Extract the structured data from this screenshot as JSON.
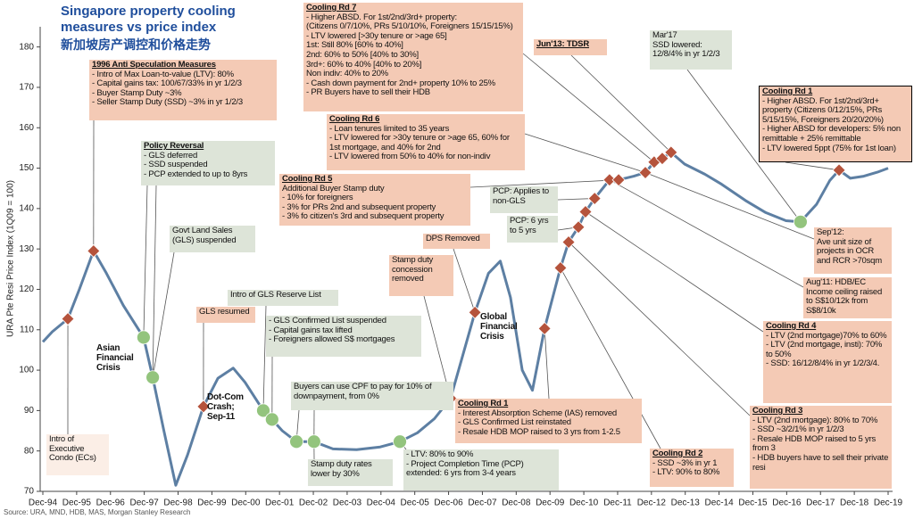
{
  "chart_data": {
    "type": "line",
    "title": "Singapore property cooling measures vs price index",
    "subtitle": "新加坡房产调控和价格走势",
    "y_label": "URA Pte Resi Price Index (1Q09 = 100)",
    "source": "Source: URA, MND, HDB, MAS, Morgan Stanley Research",
    "color": "#5d7fa3",
    "x": [
      1994.92,
      1995.2,
      1995.66,
      1996.0,
      1996.42,
      1996.8,
      1997.3,
      1997.9,
      1998.17,
      1998.5,
      1998.85,
      1999.2,
      1999.67,
      2000.1,
      2000.55,
      2000.9,
      2001.44,
      2001.7,
      2002.0,
      2002.42,
      2002.94,
      2003.5,
      2004.2,
      2004.9,
      2005.48,
      2006.0,
      2006.5,
      2006.98,
      2007.7,
      2008.1,
      2008.45,
      2008.75,
      2009.1,
      2009.4,
      2009.76,
      2010.23,
      2010.47,
      2010.76,
      2010.97,
      2011.24,
      2011.68,
      2011.95,
      2012.4,
      2012.74,
      2013.0,
      2013.24,
      2013.5,
      2013.9,
      2014.5,
      2015.0,
      2015.7,
      2016.3,
      2016.9,
      2017.33,
      2017.8,
      2018.2,
      2018.47,
      2018.8,
      2019.2,
      2019.6,
      2019.92
    ],
    "values": [
      107,
      109.5,
      112.7,
      120,
      129.5,
      124,
      116,
      108.1,
      98.2,
      85,
      71.5,
      79,
      91,
      98,
      100.5,
      97,
      90,
      87.8,
      85,
      82.3,
      82.3,
      80.5,
      80.3,
      81,
      82.3,
      84.5,
      88,
      93,
      114.3,
      124,
      127,
      118,
      100,
      95,
      110.3,
      125.3,
      131.7,
      135.4,
      139.2,
      142.5,
      147.1,
      147.1,
      148,
      148.9,
      151.5,
      152.4,
      153.9,
      151,
      148.5,
      146,
      142,
      139,
      137,
      136.7,
      141,
      147,
      149.5,
      147.5,
      148,
      149,
      150
    ],
    "markers": [
      {
        "shape": "diamond",
        "color": "#b5533c",
        "x": [
          1995.66,
          1996.42,
          1999.67,
          2006.98,
          2007.7,
          2009.76,
          2010.23,
          2010.47,
          2010.76,
          2010.97,
          2011.24,
          2011.68,
          2011.95,
          2012.74,
          2013.0,
          2013.24,
          2013.5,
          2018.47
        ],
        "values": [
          112.7,
          129.5,
          91,
          93,
          114.3,
          110.3,
          125.3,
          131.7,
          135.4,
          139.2,
          142.5,
          147.1,
          147.1,
          148.9,
          151.5,
          152.4,
          153.9,
          149.5
        ]
      },
      {
        "shape": "circle",
        "color": "#93c47d",
        "x": [
          1997.9,
          1998.17,
          2001.44,
          2001.7,
          2002.42,
          2002.94,
          2005.48,
          2017.33
        ],
        "values": [
          108.1,
          98.2,
          90,
          87.8,
          82.3,
          82.3,
          82.3,
          136.7
        ]
      }
    ],
    "xlim": [
      1994.92,
      2019.92
    ],
    "xticks": [
      {
        "value": 1994.92,
        "label": "Dec-94"
      },
      {
        "value": 1995.92,
        "label": "Dec-95"
      },
      {
        "value": 1996.92,
        "label": "Dec-96"
      },
      {
        "value": 1997.92,
        "label": "Dec-97"
      },
      {
        "value": 1998.92,
        "label": "Dec-98"
      },
      {
        "value": 1999.92,
        "label": "Dec-99"
      },
      {
        "value": 2000.92,
        "label": "Dec-00"
      },
      {
        "value": 2001.92,
        "label": "Dec-01"
      },
      {
        "value": 2002.92,
        "label": "Dec-02"
      },
      {
        "value": 2003.92,
        "label": "Dec-03"
      },
      {
        "value": 2004.92,
        "label": "Dec-04"
      },
      {
        "value": 2005.92,
        "label": "Dec-05"
      },
      {
        "value": 2006.92,
        "label": "Dec-06"
      },
      {
        "value": 2007.92,
        "label": "Dec-07"
      },
      {
        "value": 2008.92,
        "label": "Dec-08"
      },
      {
        "value": 2009.92,
        "label": "Dec-09"
      },
      {
        "value": 2010.92,
        "label": "Dec-10"
      },
      {
        "value": 2011.92,
        "label": "Dec-11"
      },
      {
        "value": 2012.92,
        "label": "Dec-12"
      },
      {
        "value": 2013.92,
        "label": "Dec-13"
      },
      {
        "value": 2014.92,
        "label": "Dec-14"
      },
      {
        "value": 2015.92,
        "label": "Dec-15"
      },
      {
        "value": 2016.92,
        "label": "Dec-16"
      },
      {
        "value": 2017.92,
        "label": "Dec-17"
      },
      {
        "value": 2018.92,
        "label": "Dec-18"
      },
      {
        "value": 2019.92,
        "label": "Dec-19"
      }
    ],
    "ylim": [
      70,
      185
    ],
    "yticks": [
      70,
      80,
      90,
      100,
      110,
      120,
      130,
      140,
      150,
      160,
      170,
      180
    ],
    "grid": false,
    "annotations": [
      {
        "lines": [
          "Intro of Executive Condo (ECs)"
        ],
        "color": "#fbeee6"
      },
      {
        "title": "1996 Anti Speculation Measures",
        "lines": [
          "- Intro of Max Loan-to-value (LTV): 80%",
          "- Capital gains tax: 100/67/33% in yr 1/2/3",
          "- Buyer Stamp Duty ~3%",
          "- Seller Stamp Duty (SSD) ~3% in yr 1/2/3"
        ],
        "color": "#f4cab5"
      },
      {
        "title": "Policy Reversal",
        "lines": [
          "- GLS deferred",
          "- SSD suspended",
          "- PCP extended to up to 8yrs"
        ],
        "color": "#dde4d8"
      },
      {
        "lines": [
          "Govt Land Sales (GLS) suspended"
        ],
        "color": "#dde4d8"
      },
      {
        "lines": [
          "Asian Financial Crisis"
        ]
      },
      {
        "lines": [
          "GLS resumed"
        ],
        "color": "#f4cab5"
      },
      {
        "lines": [
          "Intro of GLS Reserve List"
        ],
        "color": "#dde4d8"
      },
      {
        "lines": [
          "- GLS Confirmed List suspended",
          "- Capital gains tax lifted",
          "- Foreigners allowed S$ mortgages"
        ],
        "color": "#dde4d8"
      },
      {
        "lines": [
          "Dot-Com Crash; Sep-11"
        ]
      },
      {
        "lines": [
          "Buyers can use CPF to pay for 10% of downpayment, from 0%"
        ],
        "color": "#dde4d8"
      },
      {
        "lines": [
          "Stamp duty rates lower by 30%"
        ],
        "color": "#dde4d8"
      },
      {
        "lines": [
          "- LTV: 80% to 90%",
          "- Project Completion Time (PCP) extended: 6 yrs from 3-4 years"
        ],
        "color": "#dde4d8"
      },
      {
        "lines": [
          "Stamp duty concession removed"
        ],
        "color": "#f4cab5"
      },
      {
        "lines": [
          "DPS Removed"
        ],
        "color": "#f4cab5"
      },
      {
        "lines": [
          "Global Financial Crisis"
        ]
      },
      {
        "title": "Cooling Rd 5",
        "lines": [
          "Additional Buyer Stamp duty",
          "- 10% for foreigners",
          "- 3% for PRs 2nd and subsequent property",
          "- 3% fo citizen's 3rd and subsequent property"
        ],
        "color": "#f4cab5"
      },
      {
        "title": "Cooling Rd 6",
        "lines": [
          "- Loan tenures limited to 35 years",
          "- LTV lowered for >30y tenure or >age 65, 60% for 1st mortgage, and 40% for 2nd",
          "- LTV lowered from 50% to 40% for non-indiv"
        ],
        "color": "#f4cab5"
      },
      {
        "title": "Cooling Rd 7",
        "lines": [
          "- Higher ABSD. For 1st/2nd/3rd+ property:",
          "(Citizens 0/7/10%, PRs 5/10/10%, Foreigners 15/15/15%)",
          "- LTV lowered [>30y tenure or >age 65]",
          "1st: Still 80% [60% to 40%]",
          "2nd: 60% to 50% [40% to 30%]",
          "3rd+: 60% to 40% [40% to 20%]",
          "Non indiv: 40% to 20%",
          "- Cash down payment for 2nd+ property 10% to 25%",
          "- PR Buyers have to sell their HDB"
        ],
        "color": "#f4cab5"
      },
      {
        "title": "Jun'13: TDSR",
        "lines": [],
        "color": "#f4cab5"
      },
      {
        "lines": [
          "PCP: Applies to non-GLS"
        ],
        "color": "#dde4d8"
      },
      {
        "lines": [
          "PCP: 6 yrs to 5 yrs"
        ],
        "color": "#dde4d8"
      },
      {
        "lines": [
          "Mar'17",
          "SSD lowered: 12/8/4% in yr 1/2/3"
        ],
        "color": "#dde4d8"
      },
      {
        "title": "Cooling Rd 1",
        "lines": [
          "- Higher ABSD. For 1st/2nd/3rd+ property (Citizens 0/12/15%, PRs 5/15/15%, Foreigners 20/20/20%)",
          "- Higher ABSD for developers: 5% non remittable + 25% remittable",
          "- LTV lowered 5ppt (75% for 1st loan)"
        ],
        "color": "#f4cab5",
        "border": "#000000"
      },
      {
        "lines": [
          "Sep'12:",
          "Ave unit size of projects in OCR and RCR >70sqm"
        ],
        "color": "#f4cab5"
      },
      {
        "lines": [
          "Aug'11: HDB/EC",
          "Income ceiling raised to S$10/12k from S$8/10k"
        ],
        "color": "#f4cab5"
      },
      {
        "title": "Cooling Rd 4",
        "lines": [
          "- LTV (2nd mortgage)70% to 60%",
          "- LTV (2nd mortgage, insti): 70% to 50%",
          "- SSD: 16/12/8/4% in yr 1/2/3/4."
        ],
        "color": "#f4cab5"
      },
      {
        "title": "Cooling Rd 3",
        "lines": [
          "- LTV (2nd mortgage): 80% to 70%",
          "- SSD ~3/2/1% in yr 1/2/3",
          "- Resale HDB MOP raised to 5 yrs from 3",
          "- HDB buyers have to sell their private resi"
        ],
        "color": "#f4cab5"
      },
      {
        "title": "Cooling Rd 2",
        "lines": [
          "- SSD ~3% in yr 1",
          "- LTV: 90% to 80%"
        ],
        "color": "#f4cab5"
      },
      {
        "title": "Cooling Rd 1",
        "lines": [
          "- Interest Absorption Scheme (IAS) removed",
          "- GLS Confirmed List reinstated",
          "- Resale HDB MOP raised to 3 yrs from 1-2.5"
        ],
        "color": "#f4cab5"
      }
    ]
  }
}
